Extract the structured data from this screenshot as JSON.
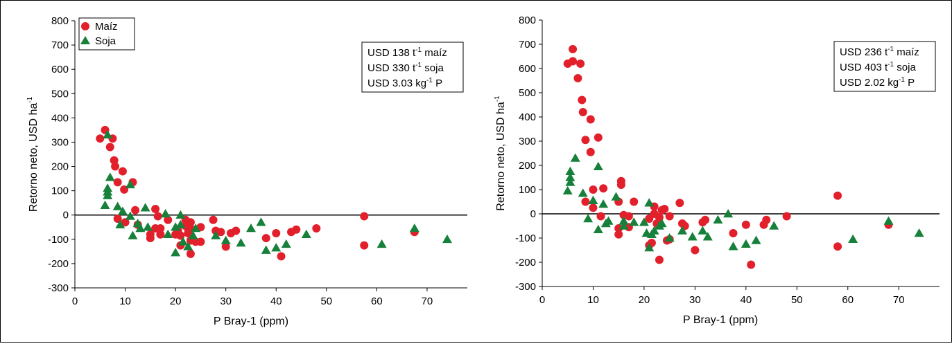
{
  "chart_data": [
    {
      "type": "scatter",
      "ylabel": {
        "text": "Retorno neto, USD ha",
        "sup": "-1"
      },
      "xlabel": "P Bray-1 (ppm)",
      "xlim": [
        0,
        78
      ],
      "ylim": [
        -300,
        800
      ],
      "xticks": [
        0,
        10,
        20,
        30,
        40,
        50,
        60,
        70
      ],
      "yticks": [
        -300,
        -200,
        -100,
        0,
        100,
        200,
        300,
        400,
        500,
        600,
        700,
        800
      ],
      "legend": "upper left",
      "annotation": [
        {
          "text": "USD 138 t",
          "sup": "-1",
          "rest": " maíz"
        },
        {
          "text": "USD 330 t",
          "sup": "-1",
          "rest": " soja"
        },
        {
          "text": "USD 3.03 kg",
          "sup": "-1",
          "rest": " P"
        }
      ],
      "series": [
        {
          "name": "Maíz",
          "color": "#e2202c",
          "marker": "circle",
          "x": [
            5,
            6,
            7,
            7.5,
            7.8,
            8,
            8.5,
            9.5,
            9.8,
            11.5,
            8.5,
            10,
            12,
            12.5,
            15,
            15,
            16,
            16,
            16.5,
            17,
            17,
            18.5,
            20,
            20.5,
            21,
            21,
            22,
            22,
            22.5,
            22.5,
            23,
            23,
            23,
            23,
            24,
            25,
            25,
            27.5,
            28,
            29,
            30,
            31,
            32,
            38,
            40,
            41,
            43,
            44,
            48,
            57.5,
            57.5,
            67.5
          ],
          "values": [
            315,
            350,
            280,
            315,
            225,
            200,
            135,
            180,
            105,
            135,
            -15,
            -30,
            20,
            -40,
            -95,
            -80,
            25,
            -55,
            -5,
            -80,
            -55,
            -20,
            -80,
            -65,
            -85,
            -125,
            -20,
            -45,
            -75,
            -55,
            -30,
            -55,
            -105,
            -160,
            -110,
            -50,
            -110,
            -20,
            -65,
            -70,
            -130,
            -75,
            -65,
            -95,
            -75,
            -170,
            -70,
            -60,
            -55,
            -5,
            -125,
            -70
          ]
        },
        {
          "name": "Soja",
          "color": "#17803a",
          "marker": "triangle",
          "x": [
            6,
            6.5,
            6.5,
            6.5,
            6.5,
            7,
            8.5,
            9,
            9.5,
            11,
            11,
            11.5,
            12.5,
            13,
            14,
            14.5,
            18,
            18.5,
            20,
            20,
            21,
            21,
            21.5,
            22.5,
            23.5,
            24,
            28,
            30,
            33,
            35,
            37,
            38,
            40,
            42,
            46,
            61,
            67.5,
            74
          ],
          "values": [
            40,
            95,
            110,
            80,
            330,
            155,
            35,
            -40,
            15,
            125,
            -5,
            -85,
            -35,
            -55,
            30,
            -50,
            5,
            -80,
            -155,
            -50,
            0,
            -40,
            -110,
            -130,
            -85,
            -55,
            -85,
            -105,
            -115,
            -55,
            -30,
            -145,
            -135,
            -120,
            -80,
            -120,
            -55,
            -100
          ]
        }
      ]
    },
    {
      "type": "scatter",
      "ylabel": {
        "text": "Retorno neto, USD ha",
        "sup": "-1"
      },
      "xlabel": "P Bray-1 (ppm)",
      "xlim": [
        0,
        78
      ],
      "ylim": [
        -300,
        800
      ],
      "xticks": [
        0,
        10,
        20,
        30,
        40,
        50,
        60,
        70
      ],
      "yticks": [
        -300,
        -200,
        -100,
        0,
        100,
        200,
        300,
        400,
        500,
        600,
        700,
        800
      ],
      "annotation": [
        {
          "text": "USD 236 t",
          "sup": "-1",
          "rest": " maíz"
        },
        {
          "text": "USD 403 t",
          "sup": "-1",
          "rest": " soja"
        },
        {
          "text": "USD 2.02 kg",
          "sup": "-1",
          "rest": " P"
        }
      ],
      "series": [
        {
          "color": "#e2202c",
          "marker": "circle",
          "x": [
            5,
            6,
            6,
            7,
            7.5,
            7.8,
            8,
            8.5,
            9.5,
            9.5,
            11,
            10,
            8.5,
            10,
            12,
            11.5,
            15.5,
            15.5,
            15,
            15,
            15,
            16,
            17,
            17,
            18,
            21,
            21,
            21.5,
            22,
            22,
            22.5,
            23,
            23,
            23.5,
            24,
            24.5,
            25,
            25,
            27,
            27.5,
            28,
            30,
            31.5,
            32,
            37.5,
            40,
            41,
            43.5,
            44,
            48,
            58,
            58,
            68
          ],
          "values": [
            620,
            680,
            630,
            560,
            620,
            470,
            420,
            305,
            390,
            255,
            315,
            100,
            50,
            25,
            105,
            -10,
            120,
            135,
            50,
            -60,
            -85,
            -5,
            -10,
            -55,
            50,
            -20,
            -130,
            -120,
            30,
            0,
            -40,
            -15,
            -190,
            15,
            20,
            -110,
            -10,
            -105,
            45,
            -40,
            -50,
            -150,
            -35,
            -25,
            -80,
            -45,
            -210,
            -45,
            -25,
            -10,
            75,
            -135,
            -45
          ]
        },
        {
          "color": "#17803a",
          "marker": "triangle",
          "x": [
            5,
            5.5,
            5.5,
            5.5,
            6.5,
            8,
            9,
            10,
            11,
            11,
            12,
            12.5,
            13,
            14.5,
            16,
            16,
            18,
            20,
            20.5,
            21,
            21,
            21.5,
            22,
            23,
            23.5,
            25,
            27.5,
            29.5,
            31.5,
            32.5,
            34.5,
            36.5,
            37.5,
            40,
            42,
            45.5,
            61,
            68,
            74
          ],
          "values": [
            95,
            175,
            150,
            130,
            230,
            85,
            -20,
            55,
            195,
            -65,
            40,
            -40,
            -30,
            70,
            -50,
            -30,
            -35,
            -35,
            -80,
            -140,
            45,
            -85,
            -70,
            -50,
            -40,
            -100,
            -70,
            -95,
            -70,
            -95,
            -25,
            0,
            -135,
            -125,
            -110,
            -50,
            -105,
            -30,
            -80
          ]
        }
      ]
    }
  ]
}
